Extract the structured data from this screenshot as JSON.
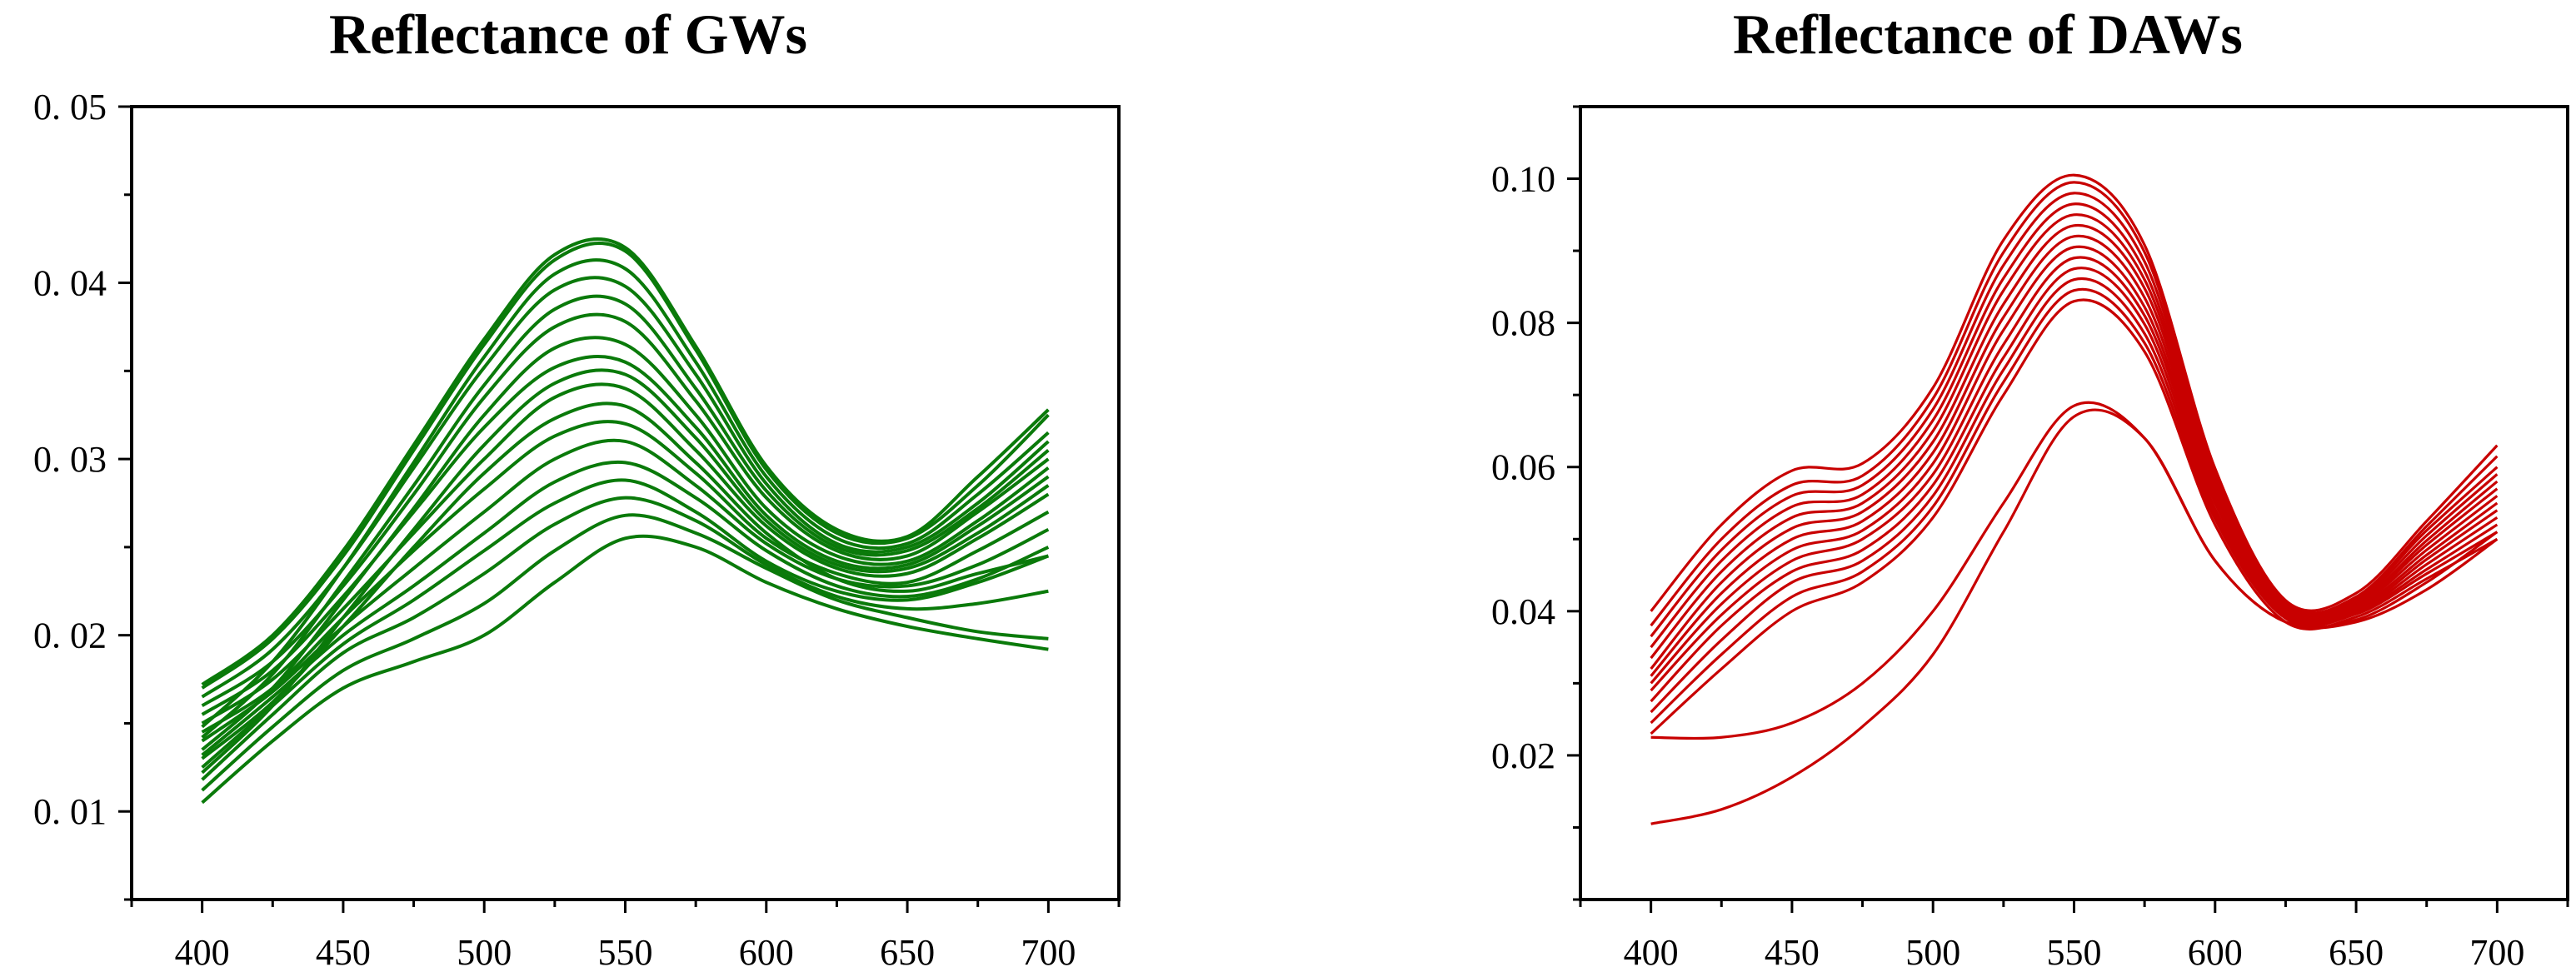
{
  "chart_data": [
    {
      "type": "line",
      "title": "Reflectance of GWs",
      "xlabel": "",
      "ylabel": "",
      "xlim": [
        375,
        725
      ],
      "ylim": [
        0.005,
        0.05
      ],
      "x_ticks": [
        400,
        450,
        500,
        550,
        600,
        650,
        700
      ],
      "x_tick_labels": [
        "400",
        "450",
        "500",
        "550",
        "600",
        "650",
        "700"
      ],
      "y_ticks": [
        0.01,
        0.02,
        0.03,
        0.04,
        0.05
      ],
      "y_tick_labels": [
        "0. 01",
        "0. 02",
        "0. 03",
        "0. 04",
        "0. 05"
      ],
      "grid": false,
      "legend": "none",
      "color": "#0a7a0a",
      "x": [
        400,
        425,
        450,
        475,
        500,
        525,
        550,
        575,
        600,
        625,
        650,
        675,
        700
      ],
      "series": [
        {
          "values": [
            0.0105,
            0.014,
            0.017,
            0.0185,
            0.02,
            0.023,
            0.0255,
            0.025,
            0.023,
            0.0215,
            0.0205,
            0.0198,
            0.0192
          ]
        },
        {
          "values": [
            0.0112,
            0.0148,
            0.018,
            0.0198,
            0.0218,
            0.0248,
            0.0268,
            0.0258,
            0.0238,
            0.022,
            0.021,
            0.0202,
            0.0198
          ]
        },
        {
          "values": [
            0.0118,
            0.0155,
            0.019,
            0.021,
            0.0235,
            0.0263,
            0.0278,
            0.0265,
            0.024,
            0.0222,
            0.0215,
            0.0218,
            0.0225
          ]
        },
        {
          "values": [
            0.0125,
            0.016,
            0.0195,
            0.022,
            0.0248,
            0.0275,
            0.0288,
            0.027,
            0.0242,
            0.0225,
            0.022,
            0.023,
            0.0245
          ]
        },
        {
          "values": [
            0.0132,
            0.0165,
            0.02,
            0.0228,
            0.0258,
            0.0287,
            0.0298,
            0.0278,
            0.0248,
            0.0228,
            0.0222,
            0.0232,
            0.025
          ]
        },
        {
          "values": [
            0.014,
            0.0168,
            0.0205,
            0.0238,
            0.027,
            0.03,
            0.031,
            0.0285,
            0.0252,
            0.0232,
            0.0228,
            0.024,
            0.026
          ]
        },
        {
          "values": [
            0.0145,
            0.017,
            0.021,
            0.0248,
            0.0283,
            0.0313,
            0.032,
            0.0292,
            0.0255,
            0.0235,
            0.023,
            0.0248,
            0.027
          ]
        },
        {
          "values": [
            0.013,
            0.0162,
            0.0205,
            0.025,
            0.0292,
            0.0323,
            0.033,
            0.0298,
            0.0258,
            0.0232,
            0.0225,
            0.0235,
            0.0245
          ]
        },
        {
          "values": [
            0.015,
            0.0175,
            0.0215,
            0.0258,
            0.03,
            0.0335,
            0.034,
            0.0305,
            0.0262,
            0.0238,
            0.0235,
            0.0255,
            0.028
          ]
        },
        {
          "values": [
            0.0122,
            0.016,
            0.021,
            0.026,
            0.0308,
            0.0343,
            0.0348,
            0.0312,
            0.0265,
            0.024,
            0.0238,
            0.0258,
            0.0285
          ]
        },
        {
          "values": [
            0.0155,
            0.018,
            0.0222,
            0.027,
            0.0318,
            0.0352,
            0.0355,
            0.0318,
            0.0268,
            0.0242,
            0.024,
            0.0262,
            0.029
          ]
        },
        {
          "values": [
            0.0135,
            0.017,
            0.022,
            0.0272,
            0.0325,
            0.0363,
            0.0365,
            0.0325,
            0.0272,
            0.0245,
            0.0242,
            0.0265,
            0.0295
          ]
        },
        {
          "values": [
            0.016,
            0.0185,
            0.0228,
            0.028,
            0.0335,
            0.0375,
            0.0378,
            0.0333,
            0.0278,
            0.0248,
            0.0245,
            0.027,
            0.03
          ]
        },
        {
          "values": [
            0.0142,
            0.0178,
            0.023,
            0.0285,
            0.0342,
            0.0385,
            0.0388,
            0.034,
            0.0282,
            0.025,
            0.0248,
            0.0272,
            0.0305
          ]
        },
        {
          "values": [
            0.0165,
            0.0192,
            0.0238,
            0.0295,
            0.0352,
            0.0396,
            0.0398,
            0.0348,
            0.0286,
            0.0252,
            0.025,
            0.0275,
            0.031
          ]
        },
        {
          "values": [
            0.0148,
            0.0185,
            0.0238,
            0.0298,
            0.0358,
            0.0405,
            0.0408,
            0.0355,
            0.029,
            0.0255,
            0.0252,
            0.028,
            0.0315
          ]
        },
        {
          "values": [
            0.017,
            0.0198,
            0.0245,
            0.0305,
            0.0365,
            0.0413,
            0.0418,
            0.0362,
            0.0294,
            0.0258,
            0.0255,
            0.0285,
            0.0325
          ]
        },
        {
          "values": [
            0.0172,
            0.02,
            0.0248,
            0.0308,
            0.0368,
            0.0416,
            0.042,
            0.0364,
            0.0296,
            0.026,
            0.0256,
            0.029,
            0.0328
          ]
        }
      ]
    },
    {
      "type": "line",
      "title": "Reflectance of DAWs",
      "xlabel": "",
      "ylabel": "",
      "xlim": [
        375,
        725
      ],
      "ylim": [
        0.0,
        0.11
      ],
      "x_ticks": [
        400,
        450,
        500,
        550,
        600,
        650,
        700
      ],
      "x_tick_labels": [
        "400",
        "450",
        "500",
        "550",
        "600",
        "650",
        "700"
      ],
      "y_ticks": [
        0.02,
        0.04,
        0.06,
        0.08,
        0.1
      ],
      "y_tick_labels": [
        "0.02",
        "0.04",
        "0.06",
        "0.08",
        "0.10"
      ],
      "grid": false,
      "legend": "none",
      "color": "#c80000",
      "x": [
        400,
        425,
        450,
        475,
        500,
        525,
        550,
        575,
        600,
        625,
        650,
        675,
        700
      ],
      "series": [
        {
          "values": [
            0.0105,
            0.0125,
            0.017,
            0.024,
            0.034,
            0.051,
            0.067,
            0.064,
            0.047,
            0.0385,
            0.0385,
            0.043,
            0.05
          ]
        },
        {
          "values": [
            0.0225,
            0.0225,
            0.0245,
            0.03,
            0.04,
            0.055,
            0.0685,
            0.064,
            0.047,
            0.0385,
            0.0388,
            0.044,
            0.051
          ]
        },
        {
          "values": [
            0.023,
            0.032,
            0.04,
            0.044,
            0.053,
            0.07,
            0.083,
            0.076,
            0.052,
            0.0385,
            0.0392,
            0.0445,
            0.05
          ]
        },
        {
          "values": [
            0.0245,
            0.034,
            0.042,
            0.0455,
            0.0545,
            0.0718,
            0.0845,
            0.0772,
            0.0528,
            0.039,
            0.0396,
            0.0452,
            0.051
          ]
        },
        {
          "values": [
            0.026,
            0.036,
            0.044,
            0.047,
            0.056,
            0.0735,
            0.086,
            0.0785,
            0.0535,
            0.0393,
            0.0398,
            0.0458,
            0.052
          ]
        },
        {
          "values": [
            0.0275,
            0.038,
            0.0455,
            0.0485,
            0.0575,
            0.0752,
            0.0875,
            0.0798,
            0.0542,
            0.0396,
            0.04,
            0.0465,
            0.053
          ]
        },
        {
          "values": [
            0.029,
            0.0395,
            0.047,
            0.05,
            0.059,
            0.077,
            0.089,
            0.081,
            0.055,
            0.0398,
            0.0402,
            0.0472,
            0.054
          ]
        },
        {
          "values": [
            0.03,
            0.041,
            0.0485,
            0.0512,
            0.0605,
            0.079,
            0.0905,
            0.0822,
            0.0556,
            0.04,
            0.0405,
            0.0478,
            0.055
          ]
        },
        {
          "values": [
            0.031,
            0.0425,
            0.05,
            0.0525,
            0.062,
            0.0808,
            0.092,
            0.0835,
            0.0562,
            0.0402,
            0.0408,
            0.0485,
            0.056
          ]
        },
        {
          "values": [
            0.032,
            0.044,
            0.0515,
            0.0538,
            0.0635,
            0.0826,
            0.0935,
            0.0848,
            0.0568,
            0.0404,
            0.041,
            0.0492,
            0.057
          ]
        },
        {
          "values": [
            0.0335,
            0.0455,
            0.053,
            0.055,
            0.065,
            0.0845,
            0.095,
            0.086,
            0.0574,
            0.0406,
            0.0412,
            0.0498,
            0.058
          ]
        },
        {
          "values": [
            0.035,
            0.047,
            0.0545,
            0.0562,
            0.0665,
            0.0862,
            0.0965,
            0.0872,
            0.058,
            0.0408,
            0.0415,
            0.0505,
            0.059
          ]
        },
        {
          "values": [
            0.0365,
            0.0485,
            0.056,
            0.0575,
            0.068,
            0.088,
            0.098,
            0.0885,
            0.0586,
            0.041,
            0.0418,
            0.0512,
            0.06
          ]
        },
        {
          "values": [
            0.038,
            0.05,
            0.0575,
            0.0588,
            0.0695,
            0.0898,
            0.0995,
            0.0898,
            0.0592,
            0.0412,
            0.042,
            0.0518,
            0.0615
          ]
        },
        {
          "values": [
            0.04,
            0.052,
            0.0595,
            0.0605,
            0.071,
            0.0915,
            0.1005,
            0.0908,
            0.0598,
            0.0415,
            0.0425,
            0.0525,
            0.063
          ]
        }
      ]
    }
  ]
}
